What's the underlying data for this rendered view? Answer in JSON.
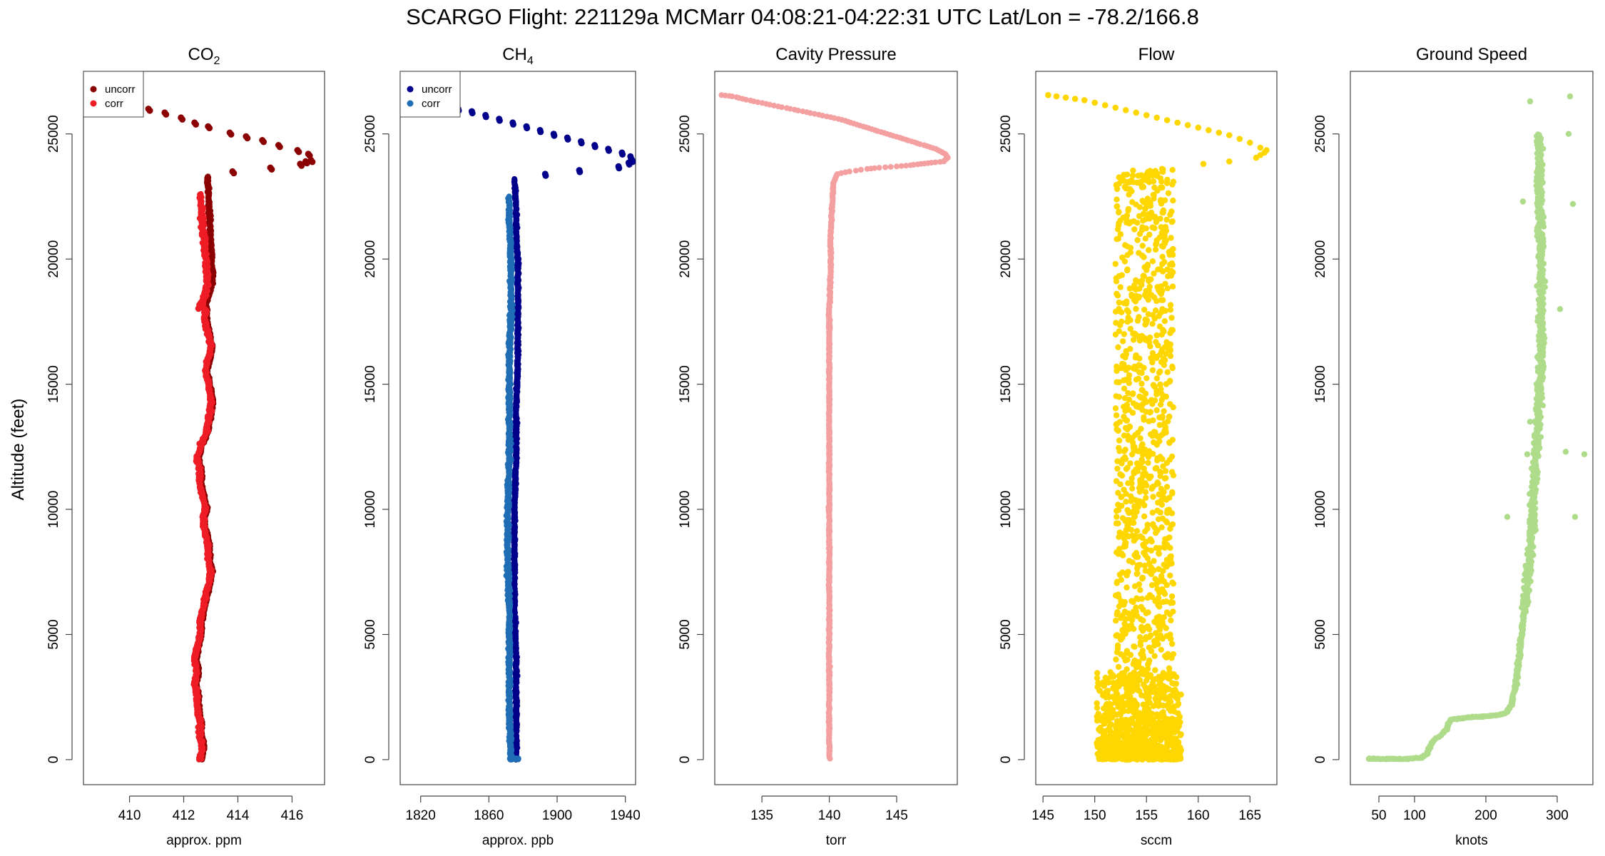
{
  "figure": {
    "title": "SCARGO Flight: 221129a  MCMarr  04:08:21-04:22:31 UTC  Lat/Lon = -78.2/166.8",
    "ylabel": "Altitude (feet)"
  },
  "chart_data": [
    {
      "type": "scatter",
      "title": "CO2",
      "title_main": "CO",
      "title_sub": "2",
      "xlabel": "approx. ppm",
      "xlim": [
        408.3,
        417.2
      ],
      "ylim": [
        -1000,
        27500
      ],
      "xticks": [
        410,
        412,
        414,
        416
      ],
      "yticks": [
        0,
        5000,
        10000,
        15000,
        20000,
        25000
      ],
      "legend": [
        "uncorr",
        "corr"
      ],
      "legend_position": "top-left",
      "series": [
        {
          "name": "uncorr",
          "color": "#8b0000",
          "x": [
            410.7,
            411.3,
            411.9,
            412.4,
            412.9,
            413.7,
            414.3,
            414.9,
            415.5,
            416.2,
            416.6,
            416.7,
            416.5,
            416.3,
            415.2,
            413.8
          ],
          "y": [
            26000,
            25850,
            25650,
            25450,
            25300,
            25050,
            24900,
            24750,
            24550,
            24350,
            24200,
            23950,
            23900,
            23800,
            23650,
            23500
          ]
        },
        {
          "name": "corr",
          "color": "#ee1c25",
          "x": [
            412.6,
            412.7,
            412.6,
            412.6,
            412.5,
            412.5,
            412.4,
            412.5,
            412.4,
            412.5,
            412.6,
            412.6,
            412.7,
            412.8,
            412.9,
            413.0,
            412.9,
            412.9,
            412.8,
            412.7,
            412.8,
            412.7,
            412.6,
            412.6,
            412.5,
            412.6,
            412.8,
            412.9,
            413.0,
            413.0,
            412.9,
            412.8,
            412.9,
            413.0,
            412.9,
            412.8,
            412.8
          ],
          "y": [
            0,
            500,
            1000,
            1500,
            2000,
            2500,
            3000,
            3500,
            4000,
            4500,
            5000,
            5500,
            6000,
            6500,
            7000,
            7500,
            8000,
            8500,
            9000,
            9500,
            10000,
            10500,
            11000,
            11500,
            12000,
            12500,
            13000,
            13500,
            14000,
            14500,
            15000,
            15500,
            16000,
            16500,
            17000,
            17500,
            18000
          ]
        }
      ]
    },
    {
      "type": "scatter",
      "title": "CH4",
      "title_main": "CH",
      "title_sub": "4",
      "xlabel": "approx. ppb",
      "xlim": [
        1808,
        1946
      ],
      "ylim": [
        -1000,
        27500
      ],
      "xticks": [
        1820,
        1860,
        1900,
        1940
      ],
      "yticks": [
        0,
        5000,
        10000,
        15000,
        20000,
        25000
      ],
      "legend": [
        "uncorr",
        "corr"
      ],
      "legend_position": "top-left",
      "series": [
        {
          "name": "uncorr",
          "color": "#00008b",
          "x": [
            1842,
            1850,
            1858,
            1866,
            1874,
            1882,
            1890,
            1898,
            1906,
            1914,
            1922,
            1930,
            1938,
            1943,
            1944,
            1942,
            1936,
            1913,
            1893
          ],
          "y": [
            26000,
            25900,
            25750,
            25600,
            25450,
            25300,
            25150,
            25000,
            24850,
            24700,
            24550,
            24400,
            24250,
            24100,
            23950,
            23850,
            23700,
            23550,
            23400
          ],
          "column": [
            [
              1876,
              1876,
              1876,
              1875,
              1875,
              1875,
              1876,
              1876,
              1877,
              1877,
              1877,
              1876,
              1876,
              1875
            ],
            [
              0,
              2000,
              4000,
              6000,
              8000,
              10000,
              12000,
              14000,
              16000,
              18000,
              20000,
              21000,
              22000,
              23200
            ]
          ]
        },
        {
          "name": "corr",
          "color": "#1f6db5",
          "x": [
            1873,
            1872,
            1872,
            1872,
            1871,
            1871,
            1872,
            1872,
            1872,
            1873,
            1873,
            1872,
            1872
          ],
          "y": [
            0,
            2000,
            4000,
            6000,
            8000,
            10000,
            12000,
            14000,
            16000,
            18000,
            20000,
            21500,
            22500
          ]
        }
      ]
    },
    {
      "type": "scatter",
      "title": "Cavity Pressure",
      "xlabel": "torr",
      "xlim": [
        131.5,
        149.5
      ],
      "ylim": [
        -1000,
        27500
      ],
      "xticks": [
        135,
        140,
        145
      ],
      "yticks": [
        0,
        5000,
        10000,
        15000,
        20000,
        25000
      ],
      "series": [
        {
          "name": "Cavity Pressure",
          "color": "#f4a0a0",
          "x": [
            132.0,
            132.8,
            133.6,
            134.4,
            135.3,
            136.2,
            137.1,
            138.0,
            138.9,
            139.8,
            140.7,
            141.6,
            142.5,
            143.4,
            144.3,
            145.2,
            146.1,
            147.0,
            147.9,
            148.6,
            148.8,
            148.5,
            147.6,
            146.8,
            146.0,
            145.0,
            143.7,
            142.8,
            141.5,
            140.6,
            140.3,
            140.2,
            140.1,
            140.1,
            140.0,
            140.0,
            140.0,
            140.0,
            140.0,
            140.0,
            140.0,
            140.0,
            140.0,
            140.0,
            140.0
          ],
          "y": [
            26550,
            26500,
            26400,
            26300,
            26200,
            26100,
            26000,
            25900,
            25800,
            25700,
            25600,
            25450,
            25300,
            25150,
            25000,
            24850,
            24700,
            24550,
            24400,
            24200,
            24050,
            23900,
            23850,
            23800,
            23750,
            23700,
            23650,
            23600,
            23500,
            23400,
            23000,
            22000,
            21000,
            19500,
            18000,
            16000,
            14000,
            12000,
            10000,
            8000,
            6000,
            4000,
            2000,
            1000,
            0
          ]
        }
      ]
    },
    {
      "type": "scatter",
      "title": "Flow",
      "xlabel": "sccm",
      "xlim": [
        144.3,
        167.6
      ],
      "ylim": [
        -1000,
        27500
      ],
      "xticks": [
        145,
        150,
        155,
        160,
        165
      ],
      "yticks": [
        0,
        5000,
        10000,
        15000,
        20000,
        25000
      ],
      "series": [
        {
          "name": "Flow",
          "color": "#ffd700",
          "x": [
            145.5,
            146.3,
            147.2,
            148.1,
            149.0,
            150.0,
            151.0,
            152.0,
            153.0,
            154.0,
            155.0,
            156.0,
            157.0,
            158.0,
            159.0,
            160.0,
            161.0,
            162.0,
            163.0,
            164.0,
            165.0,
            166.0,
            166.6,
            166.4,
            166.0,
            165.6,
            163.0,
            160.5,
            156.5
          ],
          "y": [
            26550,
            26500,
            26450,
            26400,
            26350,
            26250,
            26150,
            26050,
            25950,
            25850,
            25750,
            25650,
            25550,
            25450,
            25350,
            25250,
            25150,
            25050,
            24950,
            24800,
            24650,
            24450,
            24350,
            24250,
            24150,
            24050,
            23900,
            23800,
            23600
          ]
        }
      ],
      "scatter_band": {
        "x_range": [
          152.0,
          157.6
        ],
        "x_range_low_alt": [
          150.2,
          158.4
        ],
        "low_alt_ceiling": 3500,
        "y_range": [
          0,
          23600
        ]
      }
    },
    {
      "type": "scatter",
      "title": "Ground Speed",
      "xlabel": "knots",
      "xlim": [
        10,
        350
      ],
      "ylim": [
        -1000,
        27500
      ],
      "xticks": [
        50,
        100,
        200,
        300
      ],
      "yticks": [
        0,
        5000,
        10000,
        15000,
        20000,
        25000
      ],
      "series": [
        {
          "name": "Ground Speed",
          "color": "#aedc8a",
          "x": [
            35,
            60,
            90,
            110,
            118,
            122,
            125,
            135,
            145,
            150,
            180,
            210,
            228,
            236,
            242,
            246,
            250,
            254,
            258,
            262,
            264,
            266,
            268,
            270,
            272,
            274,
            276,
            278,
            278,
            277,
            276,
            274
          ],
          "y": [
            30,
            30,
            30,
            80,
            250,
            500,
            700,
            950,
            1200,
            1600,
            1700,
            1750,
            1850,
            2200,
            3000,
            4000,
            5000,
            6000,
            7000,
            8000,
            9000,
            10000,
            11000,
            12000,
            13000,
            14000,
            15000,
            16000,
            18000,
            20000,
            22000,
            25000
          ]
        }
      ],
      "outliers": {
        "x": [
          318,
          338,
          316,
          322,
          258,
          270,
          262,
          325,
          230,
          252,
          312,
          262,
          304,
          276
        ],
        "y": [
          26500,
          12200,
          25000,
          22200,
          12200,
          12100,
          26300,
          9700,
          9700,
          22300,
          12300,
          13500,
          18000,
          21500
        ]
      }
    }
  ]
}
